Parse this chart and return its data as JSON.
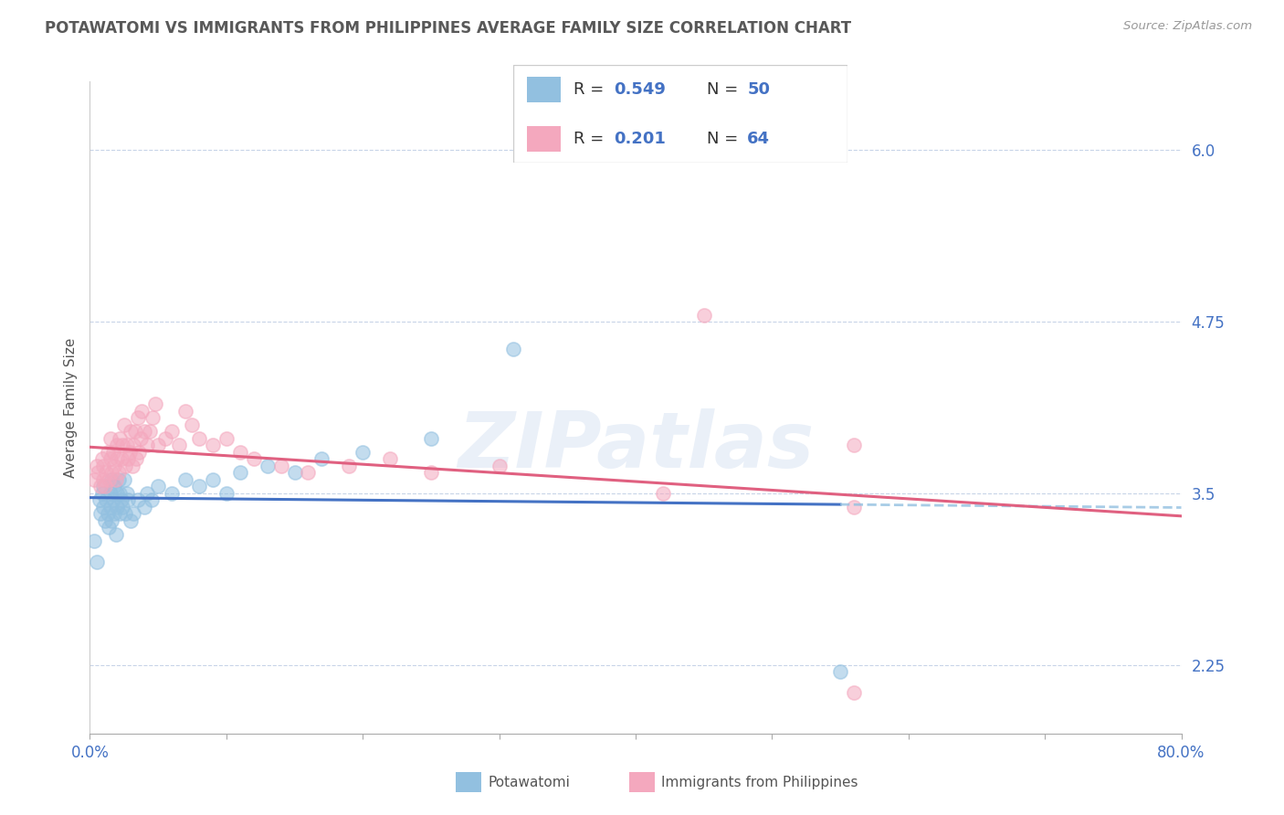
{
  "title": "POTAWATOMI VS IMMIGRANTS FROM PHILIPPINES AVERAGE FAMILY SIZE CORRELATION CHART",
  "source": "Source: ZipAtlas.com",
  "ylabel": "Average Family Size",
  "yticks": [
    2.25,
    3.5,
    4.75,
    6.0
  ],
  "xlim": [
    0.0,
    0.8
  ],
  "ylim": [
    1.75,
    6.5
  ],
  "watermark": "ZIPatlas",
  "blue_color": "#92c0e0",
  "pink_color": "#f4a8be",
  "trend_blue_solid": "#4472c4",
  "trend_blue_dash": "#92c0e0",
  "trend_pink": "#e06080",
  "axis_color": "#4472c4",
  "title_color": "#595959",
  "legend_box_color": "#e8f0f8",
  "potawatomi_x": [
    0.003,
    0.005,
    0.007,
    0.008,
    0.009,
    0.01,
    0.01,
    0.011,
    0.012,
    0.013,
    0.014,
    0.015,
    0.015,
    0.016,
    0.016,
    0.017,
    0.018,
    0.018,
    0.019,
    0.02,
    0.02,
    0.021,
    0.022,
    0.022,
    0.023,
    0.024,
    0.025,
    0.026,
    0.027,
    0.028,
    0.03,
    0.032,
    0.035,
    0.04,
    0.042,
    0.045,
    0.05,
    0.06,
    0.07,
    0.08,
    0.09,
    0.1,
    0.11,
    0.13,
    0.15,
    0.17,
    0.2,
    0.25,
    0.31,
    0.55
  ],
  "potawatomi_y": [
    3.15,
    3.0,
    3.45,
    3.35,
    3.5,
    3.4,
    3.55,
    3.3,
    3.45,
    3.35,
    3.25,
    3.5,
    3.4,
    3.6,
    3.3,
    3.45,
    3.55,
    3.35,
    3.2,
    3.5,
    3.4,
    3.6,
    3.35,
    3.5,
    3.45,
    3.4,
    3.6,
    3.35,
    3.5,
    3.45,
    3.3,
    3.35,
    3.45,
    3.4,
    3.5,
    3.45,
    3.55,
    3.5,
    3.6,
    3.55,
    3.6,
    3.5,
    3.65,
    3.7,
    3.65,
    3.75,
    3.8,
    3.9,
    4.55,
    2.2
  ],
  "philippines_x": [
    0.003,
    0.005,
    0.006,
    0.008,
    0.009,
    0.01,
    0.01,
    0.011,
    0.012,
    0.013,
    0.014,
    0.015,
    0.015,
    0.016,
    0.017,
    0.018,
    0.019,
    0.02,
    0.02,
    0.021,
    0.022,
    0.023,
    0.024,
    0.025,
    0.026,
    0.027,
    0.028,
    0.029,
    0.03,
    0.031,
    0.032,
    0.033,
    0.034,
    0.035,
    0.036,
    0.037,
    0.038,
    0.04,
    0.042,
    0.044,
    0.046,
    0.048,
    0.05,
    0.055,
    0.06,
    0.065,
    0.07,
    0.075,
    0.08,
    0.09,
    0.1,
    0.11,
    0.12,
    0.14,
    0.16,
    0.19,
    0.22,
    0.25,
    0.3,
    0.42,
    0.45,
    0.56,
    0.56,
    0.56
  ],
  "philippines_y": [
    3.6,
    3.7,
    3.65,
    3.55,
    3.75,
    3.6,
    3.7,
    3.55,
    3.65,
    3.8,
    3.6,
    3.75,
    3.9,
    3.65,
    3.8,
    3.7,
    3.6,
    3.75,
    3.85,
    3.65,
    3.9,
    3.75,
    3.85,
    4.0,
    3.7,
    3.85,
    3.75,
    3.8,
    3.95,
    3.7,
    3.85,
    3.95,
    3.75,
    4.05,
    3.8,
    3.9,
    4.1,
    3.95,
    3.85,
    3.95,
    4.05,
    4.15,
    3.85,
    3.9,
    3.95,
    3.85,
    4.1,
    4.0,
    3.9,
    3.85,
    3.9,
    3.8,
    3.75,
    3.7,
    3.65,
    3.7,
    3.75,
    3.65,
    3.7,
    3.5,
    4.8,
    3.85,
    3.4,
    2.05
  ]
}
